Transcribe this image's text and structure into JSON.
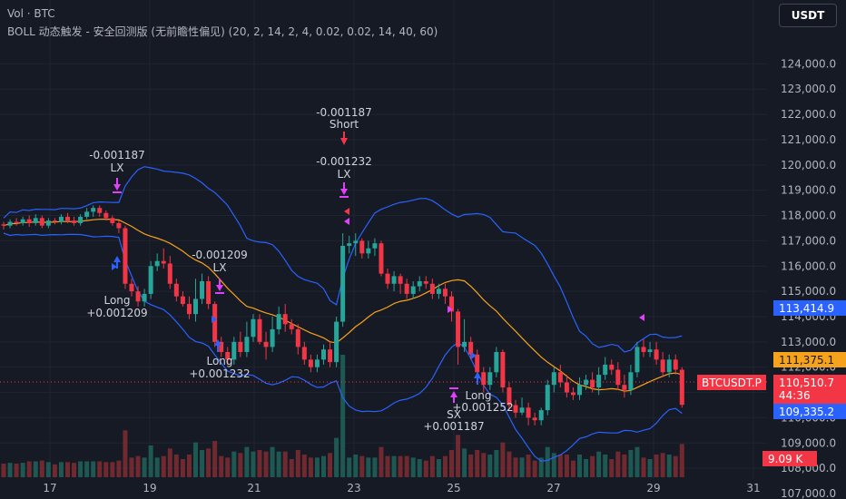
{
  "legend": {
    "line1": "Vol · BTC",
    "line2": "BOLL 动态触发 - 安全回测版 (无前瞻性偏见) (20, 2, 14, 2, 4, 0.02, 0.02, 14, 40, 60)"
  },
  "currency_button": "USDT",
  "price_axis": {
    "ticks": [
      "124,000.0",
      "123,000.0",
      "122,000.0",
      "121,000.0",
      "120,000.0",
      "119,000.0",
      "118,000.0",
      "117,000.0",
      "116,000.0",
      "115,000.0",
      "114,000.0",
      "113,000.0",
      "112,000.0",
      "111,000.0",
      "110,000.0",
      "109,000.0",
      "108,000.0",
      "107,000.0"
    ]
  },
  "time_axis": {
    "ticks": [
      "17",
      "19",
      "21",
      "23",
      "25",
      "27",
      "29",
      "31"
    ]
  },
  "price_labels": {
    "upper_band": "113,414.9",
    "middle_band": "111,375.1",
    "last_price": "110,510.7",
    "countdown": "44:36",
    "lower_band": "109,335.2",
    "volume": "9.09 K",
    "symbol": "BTCUSDT.P"
  },
  "colors": {
    "up": "#26a69a",
    "down": "#f23645",
    "band": "#2962ff",
    "middle": "#f7a21b",
    "signal_long": "#2962ff",
    "signal_exit": "#e040fb",
    "signal_short": "#f23645"
  },
  "signals": [
    {
      "type": "exit",
      "text": "-0.001187",
      "sub": "LX"
    },
    {
      "type": "long",
      "text": "Long",
      "sub": "+0.001209"
    },
    {
      "type": "exit",
      "text": "-0.001209",
      "sub": "LX"
    },
    {
      "type": "long",
      "text": "Long",
      "sub": "+0.001232"
    },
    {
      "type": "short",
      "text": "-0.001187",
      "sub": "Short"
    },
    {
      "type": "exit",
      "text": "-0.001232",
      "sub": "LX"
    },
    {
      "type": "long",
      "text": "Long",
      "sub": "+0.001252"
    },
    {
      "type": "exit",
      "text": "SX",
      "sub": "+0.001187"
    }
  ],
  "chart_data": {
    "type": "candlestick",
    "instrument": "BTCUSDT.P",
    "ylim": [
      107000,
      124500
    ],
    "x_ticks": [
      "17",
      "19",
      "21",
      "23",
      "25",
      "27",
      "29",
      "31"
    ],
    "candles": [
      [
        117650,
        117600,
        117750,
        117450
      ],
      [
        117600,
        117750,
        117850,
        117500
      ],
      [
        117750,
        117700,
        117900,
        117600
      ],
      [
        117700,
        117850,
        117950,
        117600
      ],
      [
        117850,
        117700,
        118000,
        117550
      ],
      [
        117700,
        117900,
        118050,
        117600
      ],
      [
        117900,
        117600,
        118000,
        117500
      ],
      [
        117600,
        117800,
        117900,
        117500
      ],
      [
        117800,
        117750,
        117900,
        117650
      ],
      [
        117750,
        117950,
        118050,
        117650
      ],
      [
        117950,
        117800,
        118100,
        117700
      ],
      [
        117800,
        117700,
        117950,
        117600
      ],
      [
        117700,
        117950,
        118050,
        117600
      ],
      [
        117950,
        118150,
        118300,
        117850
      ],
      [
        118150,
        118300,
        118400,
        117950
      ],
      [
        118300,
        118100,
        118400,
        117950
      ],
      [
        118100,
        117900,
        118200,
        117800
      ],
      [
        117900,
        117700,
        118000,
        117600
      ],
      [
        117700,
        117500,
        117800,
        117300
      ],
      [
        117500,
        115300,
        117600,
        115100
      ],
      [
        115300,
        115000,
        115500,
        114800
      ],
      [
        115000,
        114600,
        115200,
        114400
      ],
      [
        114600,
        114900,
        115100,
        114400
      ],
      [
        114900,
        116000,
        116200,
        114700
      ],
      [
        116000,
        116200,
        116500,
        115800
      ],
      [
        116200,
        116100,
        116700,
        115900
      ],
      [
        116100,
        115300,
        116400,
        115100
      ],
      [
        115300,
        114800,
        115500,
        114600
      ],
      [
        114800,
        114500,
        115000,
        114400
      ],
      [
        114500,
        114100,
        114800,
        113900
      ],
      [
        114100,
        114700,
        115500,
        113800
      ],
      [
        114700,
        115400,
        115700,
        114500
      ],
      [
        115400,
        114500,
        115600,
        114300
      ],
      [
        114500,
        113000,
        114600,
        112800
      ],
      [
        113000,
        112600,
        113200,
        112400
      ],
      [
        112600,
        112300,
        112800,
        112100
      ],
      [
        112300,
        113000,
        113200,
        112100
      ],
      [
        113000,
        112600,
        113400,
        112400
      ],
      [
        112600,
        113200,
        113800,
        112400
      ],
      [
        113200,
        113900,
        114100,
        113000
      ],
      [
        113900,
        113000,
        114100,
        112900
      ],
      [
        113000,
        112800,
        113400,
        112300
      ],
      [
        112800,
        113500,
        114000,
        112600
      ],
      [
        113500,
        114100,
        114400,
        113300
      ],
      [
        114100,
        113700,
        114500,
        113400
      ],
      [
        113700,
        113500,
        113900,
        113300
      ],
      [
        113500,
        112800,
        113700,
        112500
      ],
      [
        112800,
        112300,
        113000,
        112100
      ],
      [
        112300,
        112000,
        112500,
        111800
      ],
      [
        112000,
        112300,
        112500,
        111800
      ],
      [
        112300,
        112700,
        112900,
        112100
      ],
      [
        112700,
        112200,
        113000,
        112000
      ],
      [
        112200,
        113800,
        114000,
        112000
      ],
      [
        113800,
        116800,
        117300,
        113600
      ],
      [
        116800,
        116900,
        117200,
        116500
      ],
      [
        116900,
        117000,
        117300,
        116400
      ],
      [
        117000,
        116500,
        117100,
        116300
      ],
      [
        116500,
        116700,
        117000,
        116300
      ],
      [
        116700,
        116900,
        117100,
        116400
      ],
      [
        116900,
        115700,
        117000,
        115600
      ],
      [
        115700,
        115300,
        115900,
        115100
      ],
      [
        115300,
        115600,
        115800,
        115000
      ],
      [
        115600,
        115300,
        115700,
        114900
      ],
      [
        115300,
        114900,
        115500,
        114700
      ],
      [
        114900,
        115200,
        115400,
        114700
      ],
      [
        115200,
        115400,
        115600,
        115000
      ],
      [
        115400,
        115300,
        115600,
        115100
      ],
      [
        115300,
        114900,
        115500,
        114700
      ],
      [
        114900,
        115100,
        115300,
        114700
      ],
      [
        115100,
        114800,
        115300,
        114500
      ],
      [
        114800,
        114200,
        115000,
        113800
      ],
      [
        114200,
        112800,
        114300,
        112100
      ],
      [
        112800,
        113000,
        113900,
        112600
      ],
      [
        113000,
        112500,
        113200,
        112300
      ],
      [
        112500,
        111800,
        112700,
        111500
      ],
      [
        111800,
        111300,
        112000,
        111000
      ],
      [
        111300,
        111800,
        112000,
        111100
      ],
      [
        111800,
        112600,
        112800,
        111600
      ],
      [
        112600,
        111200,
        112700,
        111000
      ],
      [
        111200,
        110500,
        111400,
        110300
      ],
      [
        110500,
        110200,
        110700,
        110000
      ],
      [
        110200,
        110400,
        110800,
        110100
      ],
      [
        110400,
        110000,
        110600,
        109700
      ],
      [
        110000,
        109900,
        110200,
        109700
      ],
      [
        109900,
        110300,
        110400,
        109700
      ],
      [
        110300,
        111300,
        111500,
        110100
      ],
      [
        111300,
        111800,
        112000,
        111000
      ],
      [
        111800,
        111400,
        112100,
        111200
      ],
      [
        111400,
        111000,
        111700,
        110800
      ],
      [
        111000,
        110900,
        111200,
        110700
      ],
      [
        110900,
        111300,
        111600,
        110700
      ],
      [
        111300,
        111500,
        111700,
        111100
      ],
      [
        111500,
        111200,
        111800,
        111000
      ],
      [
        111200,
        111700,
        112000,
        110900
      ],
      [
        111700,
        112100,
        112400,
        111500
      ],
      [
        112100,
        111900,
        112300,
        111700
      ],
      [
        111900,
        111300,
        112200,
        111100
      ],
      [
        111300,
        111100,
        111700,
        110800
      ],
      [
        111100,
        111800,
        112100,
        110900
      ],
      [
        111800,
        112800,
        113000,
        111600
      ],
      [
        112800,
        112600,
        113100,
        112400
      ],
      [
        112600,
        112700,
        113000,
        112400
      ],
      [
        112700,
        112300,
        113000,
        112100
      ],
      [
        112300,
        111800,
        112600,
        111600
      ],
      [
        111800,
        112300,
        112500,
        111600
      ],
      [
        112300,
        111900,
        112500,
        111700
      ],
      [
        111900,
        110510,
        112000,
        110400
      ]
    ]
  }
}
